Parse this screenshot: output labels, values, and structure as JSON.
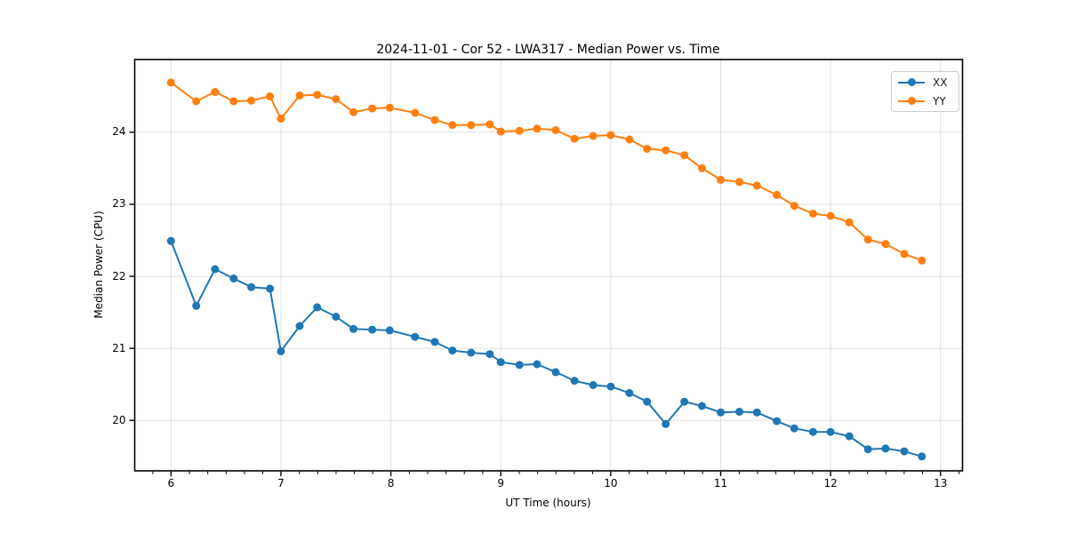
{
  "figure": {
    "title": "2024-11-01 - Cor 52 - LWA317 - Median Power vs. Time",
    "background_color": "#ffffff"
  },
  "chart_data": {
    "type": "line",
    "title": "2024-11-01 - Cor 52 - LWA317 - Median Power vs. Time",
    "xlabel": "UT Time (hours)",
    "ylabel": "Median Power (CPU)",
    "xlim": [
      5.67,
      13.2
    ],
    "ylim": [
      19.3,
      25.01
    ],
    "x_ticks": [
      6,
      7,
      8,
      9,
      10,
      11,
      12,
      13
    ],
    "y_ticks": [
      20,
      21,
      22,
      23,
      24
    ],
    "x_minor_step": 0.1667,
    "grid": true,
    "grid_color": "#e0e0e0",
    "spine_color": "#000000",
    "legend_position": "upper right",
    "marker": "o",
    "x": [
      6.0,
      6.23,
      6.4,
      6.57,
      6.73,
      6.9,
      7.0,
      7.17,
      7.33,
      7.5,
      7.66,
      7.83,
      7.99,
      8.22,
      8.4,
      8.56,
      8.73,
      8.9,
      9.0,
      9.17,
      9.33,
      9.5,
      9.67,
      9.84,
      10.0,
      10.17,
      10.33,
      10.5,
      10.67,
      10.83,
      11.0,
      11.17,
      11.33,
      11.51,
      11.67,
      11.84,
      12.0,
      12.17,
      12.34,
      12.5,
      12.67,
      12.83
    ],
    "series": [
      {
        "name": "XX",
        "color": "#1f77b4",
        "values": [
          22.49,
          21.59,
          22.1,
          21.97,
          21.85,
          21.83,
          20.96,
          21.31,
          21.57,
          21.44,
          21.27,
          21.26,
          21.25,
          21.16,
          21.09,
          20.97,
          20.94,
          20.92,
          20.81,
          20.77,
          20.78,
          20.67,
          20.55,
          20.49,
          20.47,
          20.38,
          20.26,
          19.95,
          20.26,
          20.2,
          20.11,
          20.12,
          20.11,
          19.99,
          19.89,
          19.84,
          19.84,
          19.78,
          19.6,
          19.61,
          19.57,
          19.5
        ]
      },
      {
        "name": "YY",
        "color": "#ff7f0e",
        "values": [
          24.69,
          24.43,
          24.56,
          24.43,
          24.44,
          24.5,
          24.19,
          24.51,
          24.52,
          24.46,
          24.28,
          24.33,
          24.34,
          24.27,
          24.17,
          24.1,
          24.1,
          24.11,
          24.01,
          24.02,
          24.05,
          24.03,
          23.91,
          23.95,
          23.96,
          23.9,
          23.77,
          23.75,
          23.68,
          23.5,
          23.34,
          23.31,
          23.26,
          23.13,
          22.98,
          22.87,
          22.84,
          22.75,
          22.51,
          22.45,
          22.31,
          22.22
        ]
      }
    ]
  },
  "legend": {
    "items": [
      {
        "label": "XX",
        "color": "#1f77b4"
      },
      {
        "label": "YY",
        "color": "#ff7f0e"
      }
    ]
  }
}
